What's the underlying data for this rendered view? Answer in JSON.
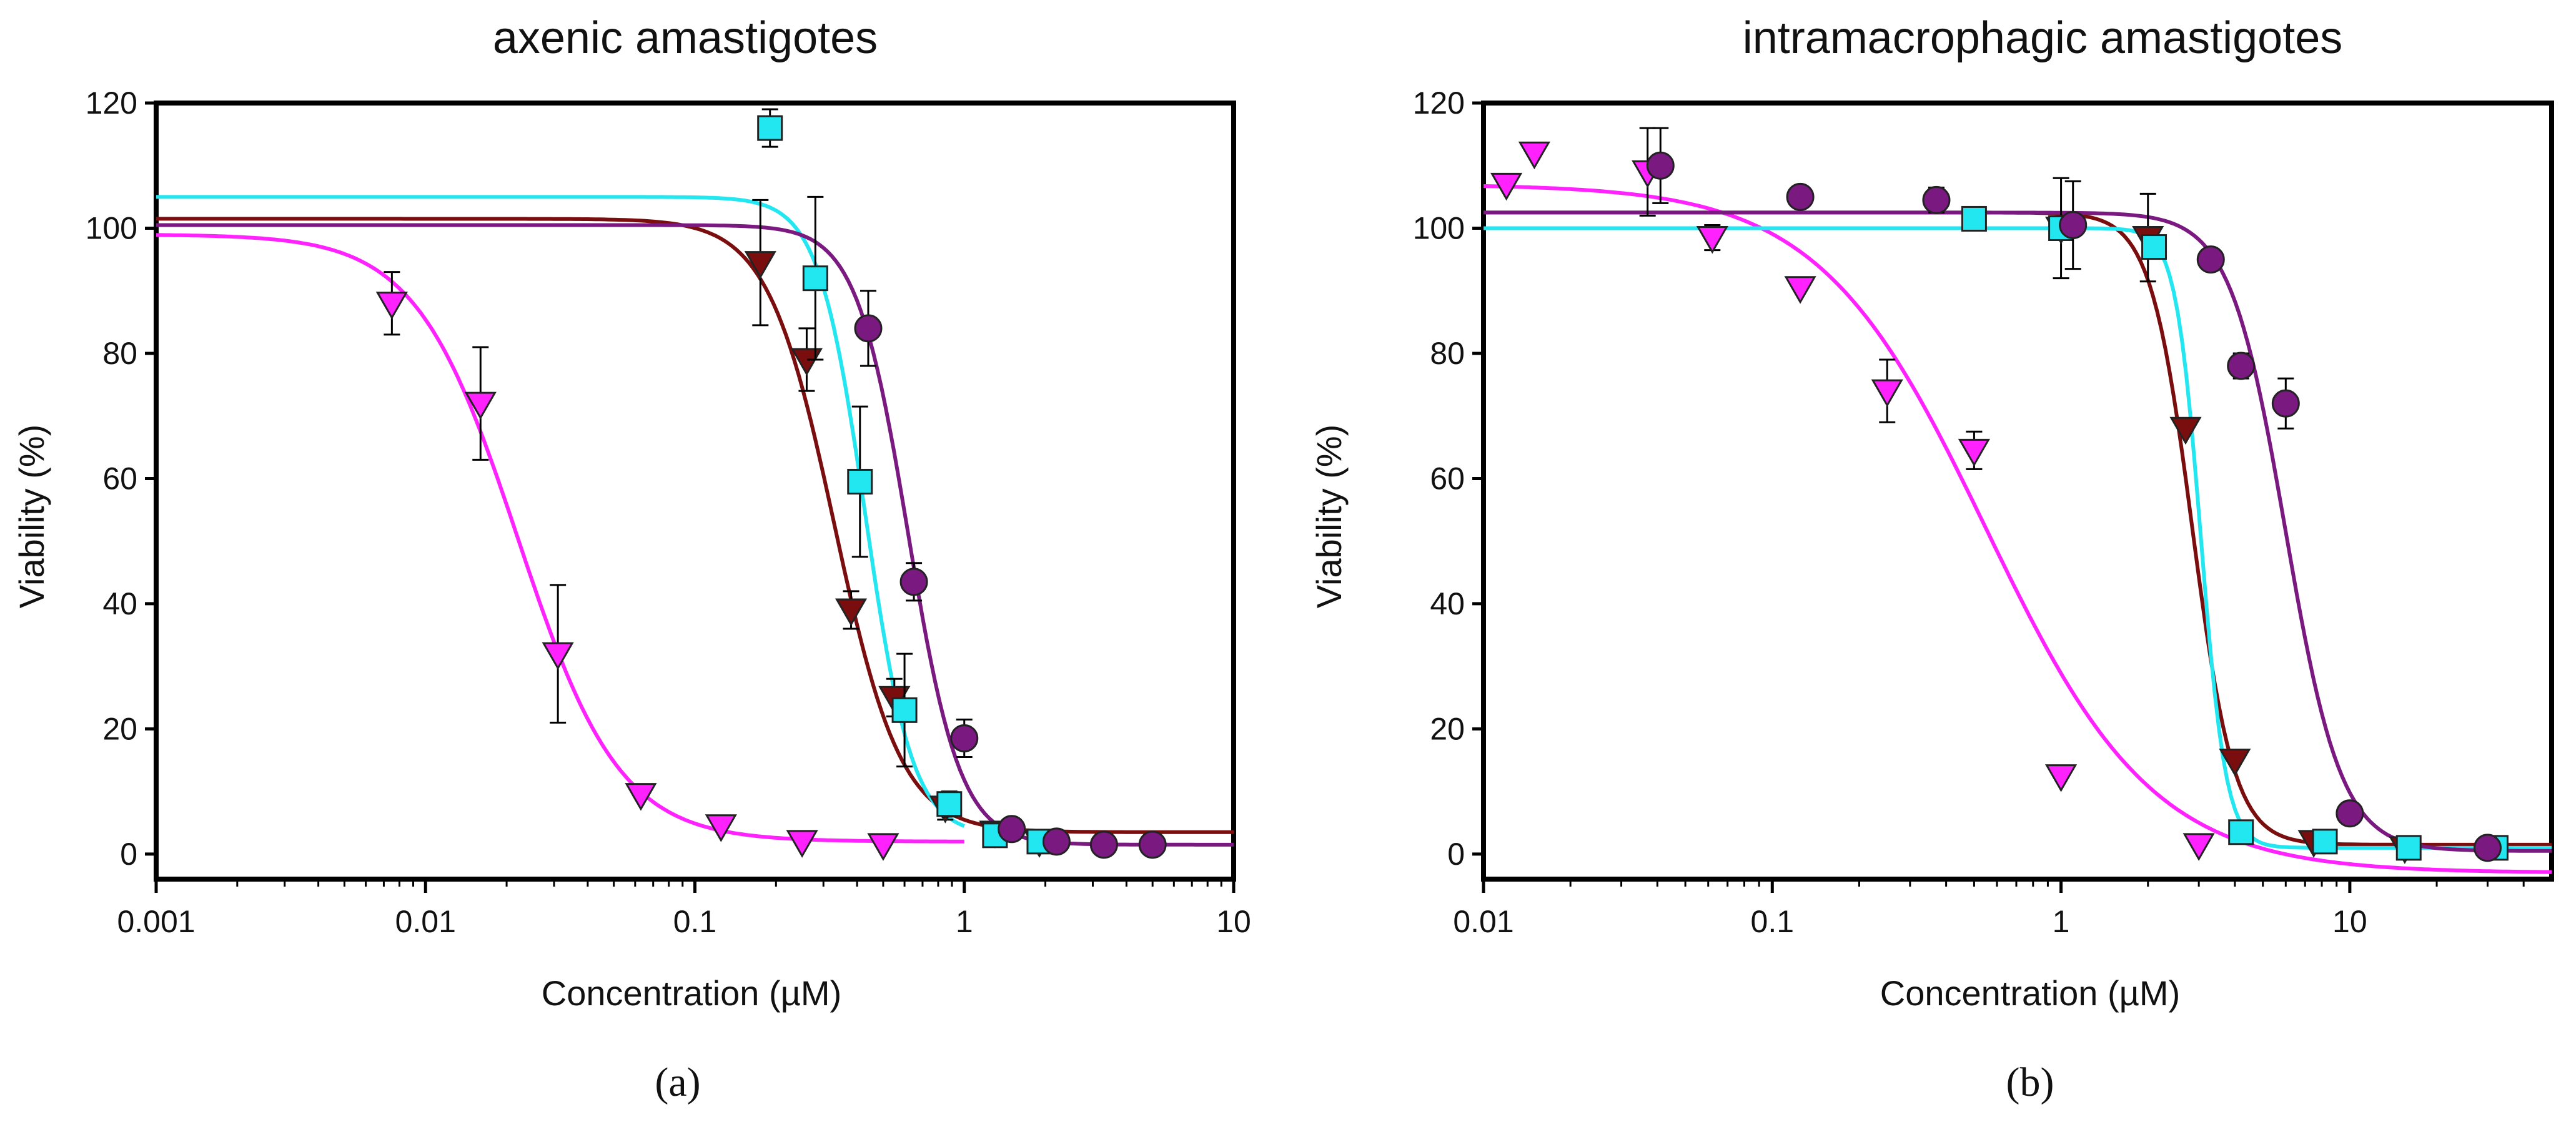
{
  "chart_data": [
    {
      "type": "scatter",
      "title": "axenic amastigotes",
      "caption": "(a)",
      "xlabel": "Concentration (µM)",
      "ylabel": "Viability (%)",
      "xscale": "log",
      "xlim": [
        0.001,
        10
      ],
      "ylim": [
        -4,
        120
      ],
      "x_ticks": [
        0.001,
        0.01,
        0.1,
        1,
        10
      ],
      "x_tick_labels": [
        "0.001",
        "0.01",
        "0.1",
        "1",
        "10"
      ],
      "y_ticks": [
        0,
        20,
        40,
        60,
        80,
        100,
        120
      ],
      "y_tick_labels": [
        "0",
        "20",
        "40",
        "60",
        "80",
        "100",
        "120"
      ],
      "grid": false,
      "series": [
        {
          "name": "magenta",
          "color": "#ff22ff",
          "marker": "triangle-down",
          "points": [
            {
              "x": 0.0075,
              "y": 88,
              "err": 5
            },
            {
              "x": 0.016,
              "y": 72,
              "err": 9
            },
            {
              "x": 0.031,
              "y": 32,
              "err": 11
            },
            {
              "x": 0.063,
              "y": 9.5
            },
            {
              "x": 0.125,
              "y": 4.5
            },
            {
              "x": 0.25,
              "y": 2
            },
            {
              "x": 0.5,
              "y": 1.5
            }
          ],
          "fit": {
            "top": 99,
            "bottom": 2,
            "ec50": 0.022,
            "hill": 2.3,
            "range": [
              0.001,
              1
            ]
          }
        },
        {
          "name": "dark red",
          "color": "#7a0e0e",
          "marker": "triangle-down",
          "points": [
            {
              "x": 0.175,
              "y": 94.5,
              "err": 10
            },
            {
              "x": 0.26,
              "y": 79,
              "err": 5
            },
            {
              "x": 0.38,
              "y": 39,
              "err": 3
            },
            {
              "x": 0.55,
              "y": 25,
              "err": 3
            },
            {
              "x": 0.85,
              "y": 7.5,
              "err": 2
            },
            {
              "x": 1.3,
              "y": 3.5
            },
            {
              "x": 1.9,
              "y": 2
            }
          ],
          "fit": {
            "top": 101.5,
            "bottom": 3.5,
            "ec50": 0.33,
            "hill": 3.5,
            "range": [
              0.001,
              10
            ]
          }
        },
        {
          "name": "cyan",
          "color": "#22e6f0",
          "marker": "square",
          "points": [
            {
              "x": 0.19,
              "y": 116,
              "err": 3
            },
            {
              "x": 0.28,
              "y": 92,
              "err": 13
            },
            {
              "x": 0.41,
              "y": 59.5,
              "err": 12
            },
            {
              "x": 0.6,
              "y": 23,
              "err": 9
            },
            {
              "x": 0.88,
              "y": 8,
              "err": 2
            },
            {
              "x": 1.3,
              "y": 3
            },
            {
              "x": 1.9,
              "y": 2
            }
          ],
          "fit": {
            "top": 105,
            "bottom": 3,
            "ec50": 0.43,
            "hill": 5,
            "range": [
              0.001,
              1
            ]
          }
        },
        {
          "name": "purple",
          "color": "#7a1a80",
          "marker": "circle",
          "points": [
            {
              "x": 0.44,
              "y": 84,
              "err": 6
            },
            {
              "x": 0.65,
              "y": 43.5,
              "err": 3
            },
            {
              "x": 1.0,
              "y": 18.5,
              "err": 3
            },
            {
              "x": 1.5,
              "y": 4
            },
            {
              "x": 2.2,
              "y": 2
            },
            {
              "x": 3.3,
              "y": 1.5
            },
            {
              "x": 5.0,
              "y": 1.5
            }
          ],
          "fit": {
            "top": 100.5,
            "bottom": 1.5,
            "ec50": 0.62,
            "hill": 4.5,
            "range": [
              0.001,
              10
            ]
          }
        }
      ]
    },
    {
      "type": "scatter",
      "title": "intramacrophagic amastigotes",
      "caption": "(b)",
      "xlabel": "Concentration (µM)",
      "ylabel": "Viability (%)",
      "xscale": "log",
      "xlim": [
        0.01,
        50
      ],
      "ylim": [
        -4,
        120
      ],
      "x_ticks": [
        0.01,
        0.1,
        1,
        10
      ],
      "x_tick_labels": [
        "0.01",
        "0.1",
        "1",
        "10"
      ],
      "y_ticks": [
        0,
        20,
        40,
        60,
        80,
        100,
        120
      ],
      "y_tick_labels": [
        "0",
        "20",
        "40",
        "60",
        "80",
        "100",
        "120"
      ],
      "grid": false,
      "series": [
        {
          "name": "magenta",
          "color": "#ff22ff",
          "marker": "triangle-down",
          "points": [
            {
              "x": 0.012,
              "y": 107
            },
            {
              "x": 0.015,
              "y": 112
            },
            {
              "x": 0.037,
              "y": 109,
              "err": 7
            },
            {
              "x": 0.062,
              "y": 98.5,
              "err": 2
            },
            {
              "x": 0.125,
              "y": 90.5
            },
            {
              "x": 0.25,
              "y": 74,
              "err": 5
            },
            {
              "x": 0.5,
              "y": 64.5,
              "err": 3
            },
            {
              "x": 1.0,
              "y": 12.5
            },
            {
              "x": 3.0,
              "y": 1.5
            }
          ],
          "fit": {
            "top": 107,
            "bottom": -3,
            "ec50": 0.55,
            "hill": 1.5,
            "range": [
              0.01,
              50
            ]
          }
        },
        {
          "name": "dark red",
          "color": "#7a0e0e",
          "marker": "triangle-down",
          "points": [
            {
              "x": 1.0,
              "y": 100,
              "err": 8
            },
            {
              "x": 2.0,
              "y": 98.5,
              "err": 7
            },
            {
              "x": 2.7,
              "y": 68
            },
            {
              "x": 4.0,
              "y": 15
            },
            {
              "x": 7.5,
              "y": 2
            },
            {
              "x": 15.5,
              "y": 1
            }
          ],
          "fit": {
            "top": 102.5,
            "bottom": 1.5,
            "ec50": 2.85,
            "hill": 6,
            "range": [
              0.01,
              50
            ]
          }
        },
        {
          "name": "cyan",
          "color": "#22e6f0",
          "marker": "square",
          "points": [
            {
              "x": 0.5,
              "y": 101.5
            },
            {
              "x": 1.0,
              "y": 100
            },
            {
              "x": 2.1,
              "y": 97
            },
            {
              "x": 4.2,
              "y": 3.5
            },
            {
              "x": 8.2,
              "y": 2
            },
            {
              "x": 16,
              "y": 1
            },
            {
              "x": 32,
              "y": 1
            }
          ],
          "fit": {
            "top": 100,
            "bottom": 1,
            "ec50": 3.05,
            "hill": 10,
            "range": [
              0.01,
              50
            ]
          }
        },
        {
          "name": "purple",
          "color": "#7a1a80",
          "marker": "circle",
          "points": [
            {
              "x": 0.041,
              "y": 110,
              "err": 6
            },
            {
              "x": 0.125,
              "y": 105
            },
            {
              "x": 0.37,
              "y": 104.5,
              "err": 2
            },
            {
              "x": 1.1,
              "y": 100.5,
              "err": 7
            },
            {
              "x": 3.3,
              "y": 95
            },
            {
              "x": 4.2,
              "y": 78,
              "err": 2
            },
            {
              "x": 6.0,
              "y": 72,
              "err": 4
            },
            {
              "x": 10,
              "y": 6.5
            },
            {
              "x": 30,
              "y": 1
            }
          ],
          "fit": {
            "top": 102.5,
            "bottom": 0.5,
            "ec50": 6.0,
            "hill": 4.5,
            "range": [
              0.01,
              50
            ]
          }
        }
      ]
    }
  ]
}
